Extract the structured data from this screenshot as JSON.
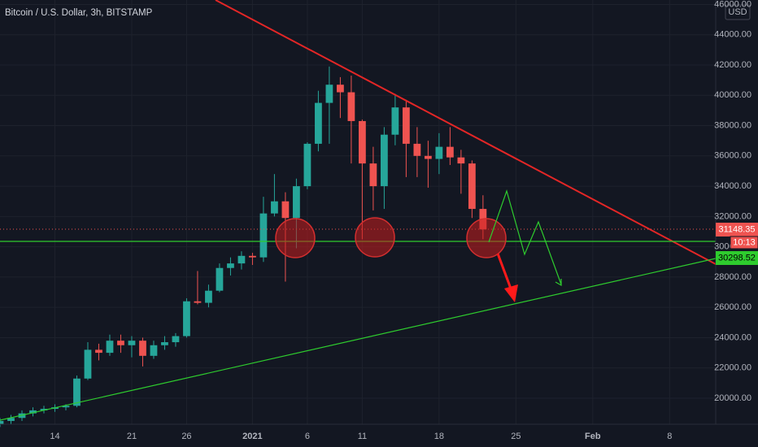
{
  "chart_data": {
    "type": "candlestick",
    "title": "Bitcoin / U.S. Dollar, 3h, BITSTAMP",
    "currency": "USD",
    "x": [
      -5,
      -4,
      -3,
      -2,
      -1,
      0,
      1,
      2,
      3,
      4,
      5,
      6,
      7,
      8,
      9,
      10,
      11,
      12,
      13,
      14,
      15,
      16,
      17,
      18,
      19,
      20,
      21,
      22,
      23,
      24,
      25,
      26,
      27,
      28,
      29,
      30,
      31,
      32,
      33,
      34,
      35,
      36,
      37,
      38,
      39
    ],
    "open": [
      18300,
      18500,
      18700,
      19000,
      19200,
      19300,
      19400,
      19500,
      21300,
      23200,
      23000,
      23800,
      23500,
      23800,
      22800,
      23500,
      23700,
      24100,
      26400,
      26300,
      27100,
      28600,
      28900,
      29400,
      29300,
      32200,
      33000,
      31900,
      34000,
      36800,
      39500,
      40700,
      40200,
      38300,
      35500,
      34000,
      37400,
      39200,
      36800,
      36000,
      35800,
      36600,
      35900,
      35500,
      32500
    ],
    "high": [
      18700,
      18900,
      19200,
      19400,
      19500,
      19600,
      19600,
      21500,
      23700,
      23600,
      24200,
      24200,
      24100,
      24000,
      23800,
      24100,
      24300,
      26600,
      28400,
      27500,
      28900,
      29300,
      29700,
      29600,
      33300,
      34800,
      33600,
      34500,
      36900,
      40300,
      41900,
      41200,
      41300,
      38400,
      36600,
      37900,
      40100,
      39700,
      37900,
      37000,
      37500,
      37900,
      36400,
      35700,
      33400
    ],
    "low": [
      18100,
      18300,
      18500,
      18800,
      19000,
      19100,
      19200,
      19400,
      21200,
      22500,
      22800,
      23000,
      22700,
      22100,
      22600,
      23200,
      23400,
      24000,
      26200,
      26000,
      27000,
      28100,
      28500,
      28800,
      29000,
      32000,
      27700,
      29900,
      33800,
      36300,
      36800,
      38500,
      35500,
      30500,
      32400,
      32500,
      36700,
      34600,
      34600,
      33900,
      34800,
      35400,
      33500,
      31900,
      30500
    ],
    "close": [
      18500,
      18700,
      19000,
      19200,
      19300,
      19400,
      19500,
      21300,
      23200,
      23000,
      23800,
      23500,
      23800,
      22800,
      23500,
      23700,
      24100,
      26400,
      26300,
      27100,
      28600,
      28900,
      29400,
      29300,
      32200,
      33000,
      31900,
      34000,
      36800,
      39500,
      40700,
      40200,
      38300,
      35500,
      34000,
      37400,
      39200,
      36800,
      36000,
      35800,
      36600,
      35900,
      35500,
      32500,
      31148.35
    ],
    "up_color": "#26a69a",
    "down_color": "#ef5350",
    "xlim": [
      -5,
      60.2
    ],
    "xticks": [
      {
        "value": 0,
        "label": "14"
      },
      {
        "value": 7,
        "label": "21"
      },
      {
        "value": 12,
        "label": "26"
      },
      {
        "value": 18,
        "label": "2021"
      },
      {
        "value": 23,
        "label": "6"
      },
      {
        "value": 28,
        "label": "11"
      },
      {
        "value": 35,
        "label": "18"
      },
      {
        "value": 42,
        "label": "25"
      },
      {
        "value": 49,
        "label": "Feb"
      },
      {
        "value": 56,
        "label": "8"
      }
    ],
    "ylim": [
      18283,
      46292
    ],
    "yticks": [
      {
        "value": 20000,
        "label": "20000.00"
      },
      {
        "value": 22000,
        "label": "22000.00"
      },
      {
        "value": 24000,
        "label": "24000.00"
      },
      {
        "value": 26000,
        "label": "26000.00"
      },
      {
        "value": 28000,
        "label": "28000.00"
      },
      {
        "value": 30000,
        "label": "30000.00"
      },
      {
        "value": 32000,
        "label": "32000.00"
      },
      {
        "value": 34000,
        "label": "34000.00"
      },
      {
        "value": 36000,
        "label": "36000.00"
      },
      {
        "value": 38000,
        "label": "38000.00"
      },
      {
        "value": 40000,
        "label": "40000.00"
      },
      {
        "value": 42000,
        "label": "42000.00"
      },
      {
        "value": 44000,
        "label": "44000.00"
      },
      {
        "value": 46000,
        "label": "46000.00"
      }
    ],
    "grid": true,
    "price_tags": [
      "31148.35",
      "10:13",
      "30298.52"
    ]
  }
}
